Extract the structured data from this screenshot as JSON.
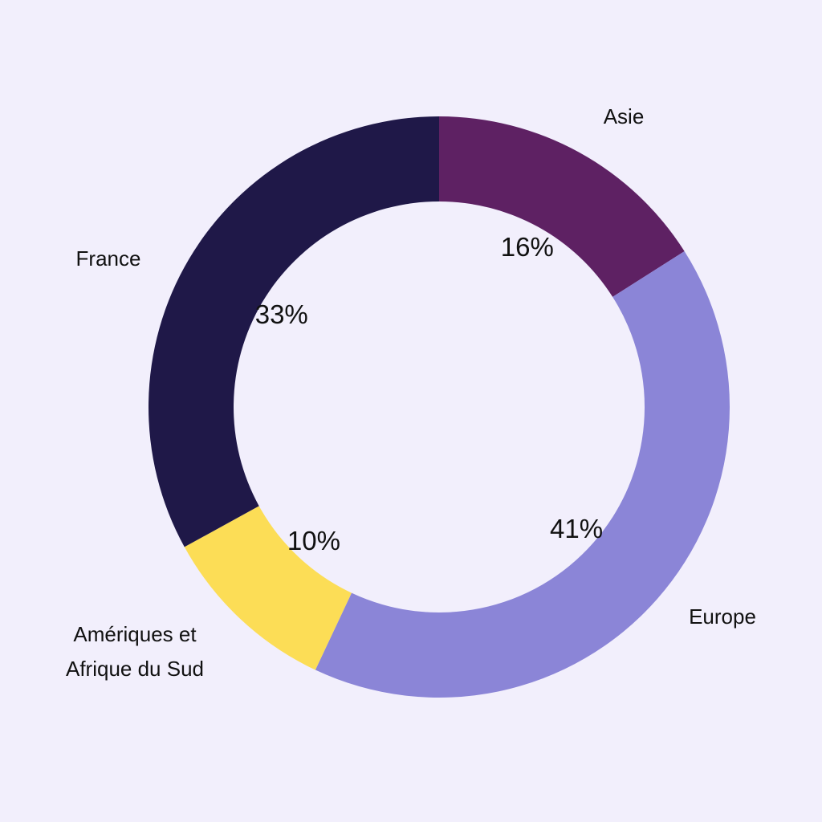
{
  "background": "#F2EFFC",
  "chart_data": {
    "type": "pie",
    "variant": "donut",
    "title": "",
    "slices": [
      {
        "name": "Asie",
        "label_lines": [
          "Asie"
        ],
        "value": 16,
        "display": "16%",
        "color": "#5E2163"
      },
      {
        "name": "Europe",
        "label_lines": [
          "Europe"
        ],
        "value": 41,
        "display": "41%",
        "color": "#8B85D7"
      },
      {
        "name": "Amériques et Afrique du Sud",
        "label_lines": [
          "Amériques et",
          "Afrique du Sud"
        ],
        "value": 10,
        "display": "10%",
        "color": "#FCDD56"
      },
      {
        "name": "France",
        "label_lines": [
          "France"
        ],
        "value": 33,
        "display": "33%",
        "color": "#1F1848"
      }
    ],
    "start": "top",
    "direction": "clockwise",
    "legend": "none"
  }
}
